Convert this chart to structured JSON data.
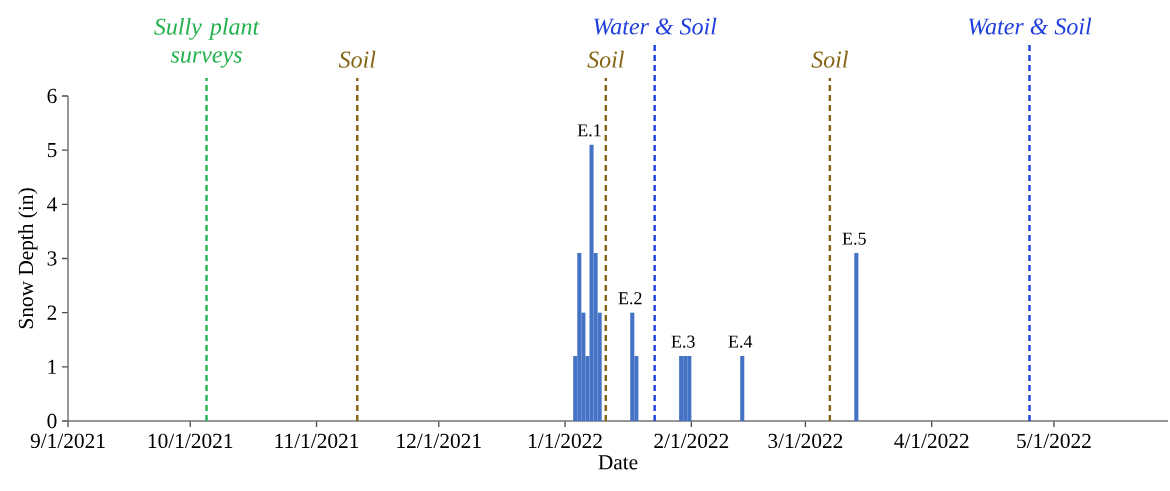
{
  "chart_data": {
    "type": "bar",
    "xlabel": "Date",
    "ylabel": "Snow Depth (in)",
    "x": [
      "2022-01-03",
      "2022-01-04",
      "2022-01-05",
      "2022-01-06",
      "2022-01-07",
      "2022-01-08",
      "2022-01-09",
      "2022-01-17",
      "2022-01-18",
      "2022-01-29",
      "2022-01-30",
      "2022-01-31",
      "2022-02-13",
      "2022-03-13"
    ],
    "values": [
      1.2,
      3.1,
      2.0,
      1.2,
      5.1,
      3.1,
      2.0,
      2.0,
      1.2,
      1.2,
      1.2,
      1.2,
      1.2,
      3.1
    ],
    "color": "#4472c4",
    "xlim": [
      "2021-09-01",
      "2022-05-29"
    ],
    "ylim": [
      0,
      6
    ],
    "xticks": [
      {
        "value": "2021-09-01",
        "label": "9/1/2021"
      },
      {
        "value": "2021-10-01",
        "label": "10/1/2021"
      },
      {
        "value": "2021-11-01",
        "label": "11/1/2021"
      },
      {
        "value": "2021-12-01",
        "label": "12/1/2021"
      },
      {
        "value": "2022-01-01",
        "label": "1/1/2022"
      },
      {
        "value": "2022-02-01",
        "label": "2/1/2022"
      },
      {
        "value": "2022-03-01",
        "label": "3/1/2022"
      },
      {
        "value": "2022-04-01",
        "label": "4/1/2022"
      },
      {
        "value": "2022-05-01",
        "label": "5/1/2022"
      }
    ],
    "yticks": [
      0,
      1,
      2,
      3,
      4,
      5,
      6
    ],
    "annotations": [
      {
        "text": "E.1",
        "x": "2022-01-07",
        "y": 5.1
      },
      {
        "text": "E.2",
        "x": "2022-01-17",
        "y": 2.0
      },
      {
        "text": "E.3",
        "x": "2022-01-30",
        "y": 1.2
      },
      {
        "text": "E.4",
        "x": "2022-02-13",
        "y": 1.2
      },
      {
        "text": "E.5",
        "x": "2022-03-13",
        "y": 3.1
      }
    ],
    "ref_lines": [
      {
        "axis": "x",
        "value": "2021-10-05",
        "label": "Sully plant surveys",
        "color": "#22b14c",
        "line_style": "dashed"
      },
      {
        "axis": "x",
        "value": "2021-11-11",
        "label": "Soil",
        "color": "#856514",
        "line_style": "dashed"
      },
      {
        "axis": "x",
        "value": "2022-01-11",
        "label": "Soil",
        "color": "#856514",
        "line_style": "dashed"
      },
      {
        "axis": "x",
        "value": "2022-01-23",
        "label": "Water & Soil",
        "color": "#1f3fdc",
        "line_style": "dashed"
      },
      {
        "axis": "x",
        "value": "2022-03-07",
        "label": "Soil",
        "color": "#856514",
        "line_style": "dashed"
      },
      {
        "axis": "x",
        "value": "2022-04-25",
        "label": "Water & Soil",
        "color": "#1f3fdc",
        "line_style": "dashed"
      }
    ]
  }
}
